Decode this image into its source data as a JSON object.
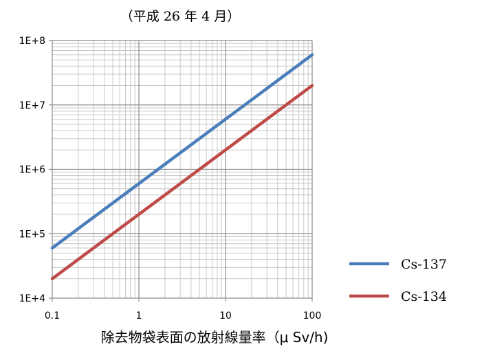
{
  "chart_data": {
    "type": "line",
    "title": "（平成 26 年 4 月）",
    "xlabel": "除去物袋表面の放射線量率（μ Sv/h)",
    "ylabel": "",
    "x_scale": "log",
    "y_scale": "log",
    "xlim": [
      0.1,
      100
    ],
    "ylim": [
      10000,
      100000000
    ],
    "x_ticks": [
      "0.1",
      "1",
      "10",
      "100"
    ],
    "y_ticks": [
      "1E+4",
      "1E+5",
      "1E+6",
      "1E+7",
      "1E+8"
    ],
    "grid": true,
    "legend_position": "right",
    "series": [
      {
        "name": "Cs-137",
        "color": "#4a7ebb",
        "x": [
          0.1,
          100
        ],
        "y": [
          60000,
          60000000
        ]
      },
      {
        "name": "Cs-134",
        "color": "#be4b48",
        "x": [
          0.1,
          100
        ],
        "y": [
          20000,
          20000000
        ]
      }
    ]
  }
}
